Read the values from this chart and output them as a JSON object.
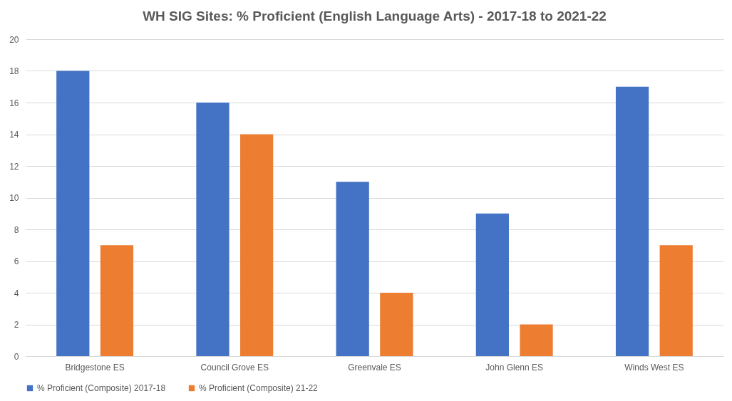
{
  "chart_data": {
    "type": "bar",
    "title": "WH SIG Sites: % Proficient (English Language Arts) - 2017-18 to 2021-22",
    "categories": [
      "Bridgestone ES",
      "Council Grove ES",
      "Greenvale ES",
      "John Glenn ES",
      "Winds West ES"
    ],
    "series": [
      {
        "name": "% Proficient (Composite) 2017-18",
        "color": "#4472c4",
        "values": [
          18,
          16,
          11,
          9,
          17
        ]
      },
      {
        "name": "% Proficient (Composite) 21-22",
        "color": "#ed7d31",
        "values": [
          7,
          14,
          4,
          2,
          7
        ]
      }
    ],
    "ylim": [
      0,
      20
    ],
    "yticks": [
      0,
      2,
      4,
      6,
      8,
      10,
      12,
      14,
      16,
      18,
      20
    ],
    "grid": "y",
    "legend": "bottom"
  }
}
